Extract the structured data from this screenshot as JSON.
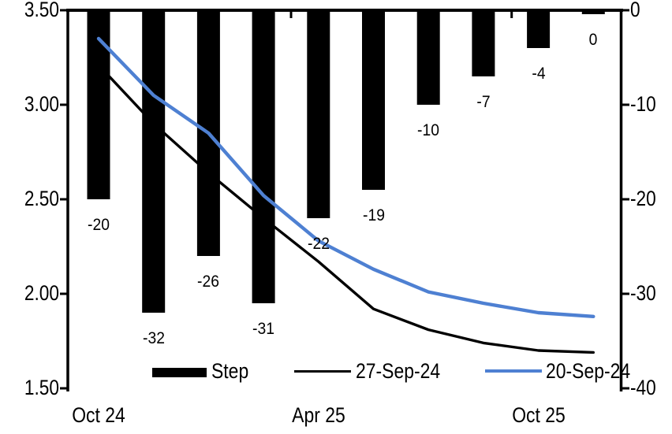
{
  "chart_data": {
    "type": "combo-bar-line",
    "title": "",
    "grid": false,
    "n_categories": 10,
    "x_axis": {
      "tick_labels": [
        {
          "index": 0,
          "label": "Oct 24"
        },
        {
          "index": 4,
          "label": "Apr 25"
        },
        {
          "index": 8,
          "label": "Oct 25"
        }
      ]
    },
    "left_axis": {
      "min": 1.5,
      "max": 3.5,
      "tick_labels": [
        "3.50",
        "3.00",
        "2.50",
        "2.00",
        "1.50"
      ]
    },
    "right_axis": {
      "min": -40,
      "max": 0,
      "tick_labels": [
        "0",
        "-10",
        "-20",
        "-30",
        "-40"
      ]
    },
    "series": [
      {
        "name": "Step",
        "type": "bar",
        "axis": "right",
        "color": "#000000",
        "values": [
          -20,
          -32,
          -26,
          -31,
          -22,
          -19,
          -10,
          -7,
          -4,
          0
        ],
        "labels": [
          "-20",
          "-32",
          "-26",
          "-31",
          "-22",
          "-19",
          "-10",
          "-7",
          "-4",
          "0"
        ]
      },
      {
        "name": "27-Sep-24",
        "type": "line",
        "axis": "left",
        "color": "#000000",
        "values": [
          3.21,
          2.9,
          2.64,
          2.4,
          2.17,
          1.92,
          1.81,
          1.74,
          1.7,
          1.69
        ]
      },
      {
        "name": "20-Sep-24",
        "type": "line",
        "axis": "left",
        "color": "#4E80D2",
        "values": [
          3.35,
          3.05,
          2.85,
          2.52,
          2.28,
          2.13,
          2.01,
          1.95,
          1.9,
          1.88
        ]
      }
    ],
    "legend": {
      "position": "bottom",
      "entries": [
        {
          "label": "Step",
          "swatch": "bar",
          "color": "#000000"
        },
        {
          "label": "27-Sep-24",
          "swatch": "line",
          "color": "#000000"
        },
        {
          "label": "20-Sep-24",
          "swatch": "line",
          "color": "#4E80D2"
        }
      ]
    }
  }
}
